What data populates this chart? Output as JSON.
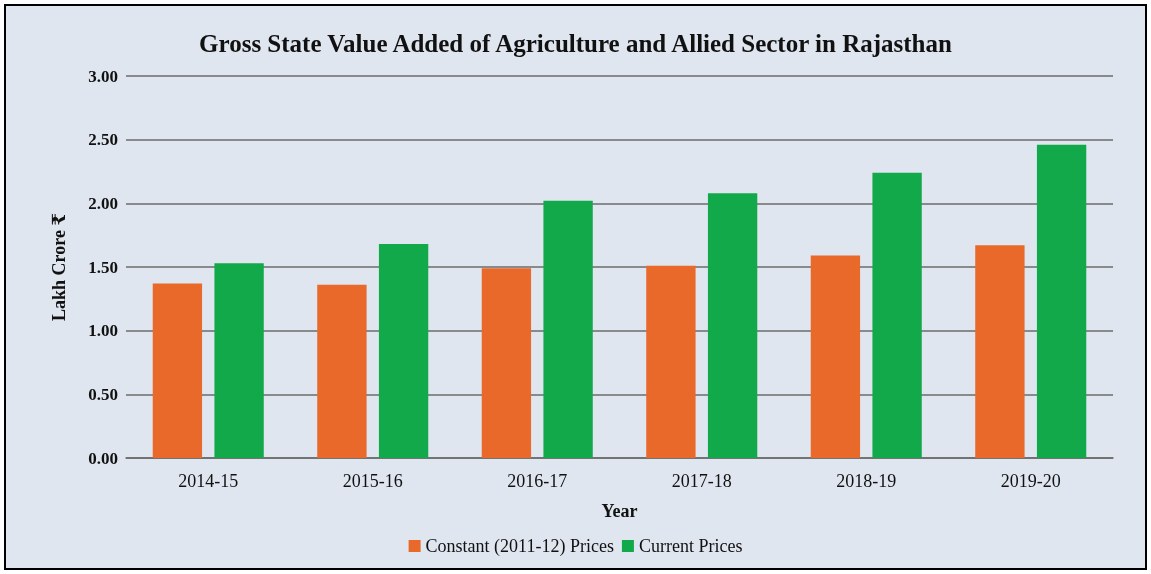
{
  "chart_data": {
    "type": "bar",
    "title": "Gross State Value Added of Agriculture and Allied Sector in Rajasthan",
    "xlabel": "Year",
    "ylabel": "Lakh Crore ₹",
    "categories": [
      "2014-15",
      "2015-16",
      "2016-17",
      "2017-18",
      "2018-19",
      "2019-20"
    ],
    "series": [
      {
        "name": "Constant (2011-12) Prices",
        "color": "#e8692a",
        "values": [
          1.37,
          1.36,
          1.49,
          1.51,
          1.59,
          1.67
        ]
      },
      {
        "name": "Current Prices",
        "color": "#12a94a",
        "values": [
          1.53,
          1.68,
          2.02,
          2.08,
          2.24,
          2.46
        ]
      }
    ],
    "ylim": [
      0,
      3
    ],
    "yticks": [
      {
        "value": 0,
        "label": "0.00"
      },
      {
        "value": 0.5,
        "label": "0.50"
      },
      {
        "value": 1,
        "label": "1.00"
      },
      {
        "value": 1.5,
        "label": "1.50"
      },
      {
        "value": 2,
        "label": "2.00"
      },
      {
        "value": 2.5,
        "label": "2.50"
      },
      {
        "value": 3,
        "label": "3.00"
      }
    ],
    "grid": "y",
    "legend": "bottom"
  }
}
